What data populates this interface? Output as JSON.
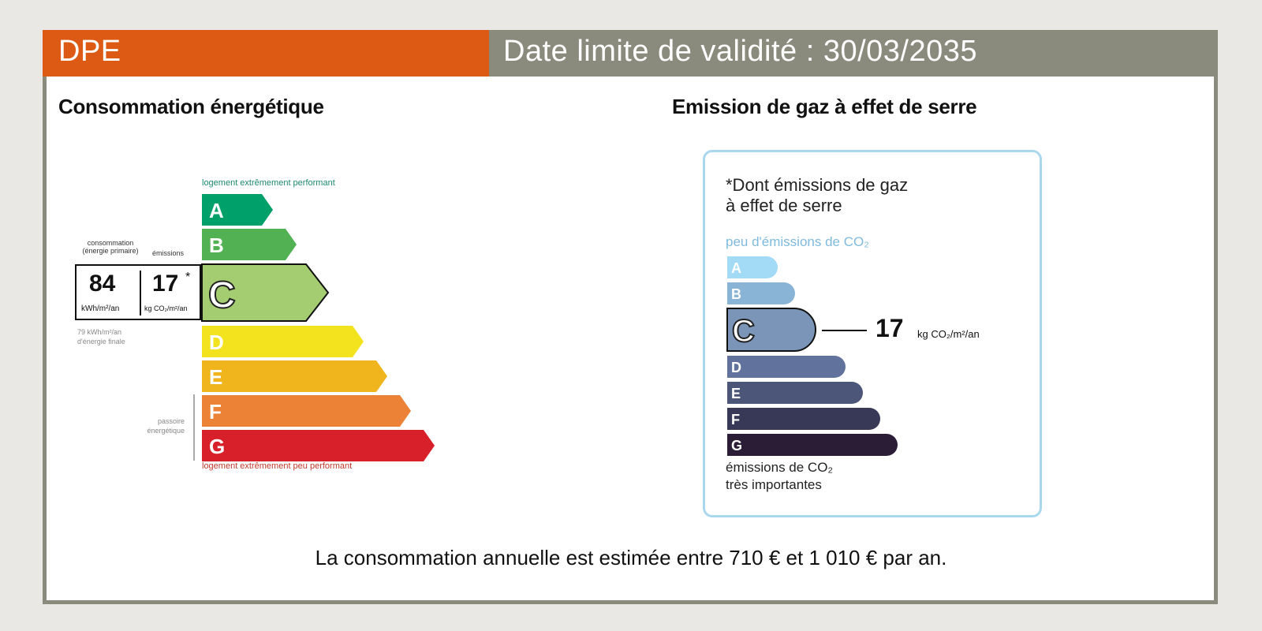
{
  "header": {
    "left_label": "DPE",
    "right_label": "Date limite de validité : 30/03/2035"
  },
  "energy": {
    "title": "Consommation énergétique",
    "top_note": "logement extrêmement performant",
    "bottom_note": "logement extrêmement peu performant",
    "col_consumption": "consommation",
    "col_consumption_sub": "(énergie primaire)",
    "col_emissions": "émissions",
    "consumption_value": "84",
    "consumption_unit": "kWh/m²/an",
    "emissions_value": "17",
    "emissions_star": "*",
    "emissions_unit": "kg CO₂/m²/an",
    "final_energy_line1": "79 kWh/m²/an",
    "final_energy_line2": "d'énergie finale",
    "passoire_line1": "passoire",
    "passoire_line2": "énergétique",
    "current_class": "C",
    "classes": [
      {
        "letter": "A",
        "color": "#00a06b"
      },
      {
        "letter": "B",
        "color": "#52b153"
      },
      {
        "letter": "C",
        "color": "#a4cc70"
      },
      {
        "letter": "D",
        "color": "#f2e31e"
      },
      {
        "letter": "E",
        "color": "#f0b41c"
      },
      {
        "letter": "F",
        "color": "#ec8236"
      },
      {
        "letter": "G",
        "color": "#d8202a"
      }
    ]
  },
  "ghg": {
    "title": "Emission de gaz à effet de serre",
    "legend_title_line1": "*Dont émissions de gaz",
    "legend_title_line2": "à effet de serre",
    "low_label": "peu d'émissions de CO₂",
    "high_label_line1": "émissions de CO₂",
    "high_label_line2": "très importantes",
    "value": "17",
    "unit": "kg CO₂/m²/an",
    "current_class": "C",
    "classes": [
      {
        "letter": "A",
        "color": "#a3dbf7"
      },
      {
        "letter": "B",
        "color": "#8ab4d6"
      },
      {
        "letter": "C",
        "color": "#7a95b7"
      },
      {
        "letter": "D",
        "color": "#61739c"
      },
      {
        "letter": "E",
        "color": "#4c5679"
      },
      {
        "letter": "F",
        "color": "#383857"
      },
      {
        "letter": "G",
        "color": "#2a1d35"
      }
    ]
  },
  "footer": {
    "text": "La consommation annuelle est estimée entre 710 € et 1 010 € par an."
  }
}
